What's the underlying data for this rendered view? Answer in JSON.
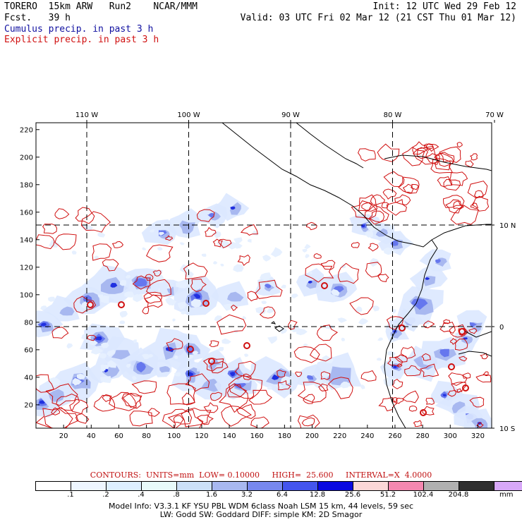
{
  "header": {
    "line1_left": "TORERO  15km ARW   Run2    NCAR/MMM",
    "line1_right": "Init: 12 UTC Wed 29 Feb 12",
    "line2_left": "Fcst.   39 h",
    "line2_right": "Valid: 03 UTC Fri 02 Mar 12 (21 CST Thu 01 Mar 12)",
    "cumulus_label": "Cumulus precip. in past 3 h",
    "explicit_label": "Explicit precip. in past 3 h"
  },
  "colors": {
    "cumulus": "#1010a0",
    "explicit": "#d01010",
    "coast": "#000000"
  },
  "map": {
    "lon_labels": [
      "110 W",
      "100 W",
      "90 W",
      "80 W",
      "70 W"
    ],
    "lon_values": [
      -110,
      -100,
      -90,
      -80,
      -70
    ],
    "lat_labels": [
      "10 N",
      "0",
      "10 S"
    ],
    "lat_values": [
      10,
      0,
      -10
    ],
    "y_ticks": [
      "20",
      "40",
      "60",
      "80",
      "100",
      "120",
      "140",
      "160",
      "180",
      "200",
      "220"
    ],
    "x_ticks": [
      "20",
      "40",
      "60",
      "80",
      "100",
      "120",
      "140",
      "160",
      "180",
      "200",
      "220",
      "240",
      "260",
      "280",
      "300",
      "320"
    ],
    "x_range": [
      0,
      330
    ],
    "y_range": [
      3,
      225
    ]
  },
  "contours": {
    "caption": "CONTOURS:  UNITS=mm  LOW= 0.10000     HIGH=  25.600     INTERVAL=X  4.0000"
  },
  "colorbar": {
    "labels": [
      ".1",
      ".2",
      ".4",
      ".8",
      "1.6",
      "3.2",
      "6.4",
      "12.8",
      "25.6",
      "51.2",
      "102.4",
      "204.8"
    ],
    "unit": "mm",
    "colors": [
      "#ffffff",
      "#eef6ff",
      "#ddefff",
      "#e8fafa",
      "#cce0f8",
      "#a8b8f0",
      "#7788ee",
      "#4455ee",
      "#0a0ae0",
      "#fcd8d8",
      "#f488b0",
      "#b0b0b0",
      "#303030",
      "#d8a8f8"
    ]
  },
  "footer": {
    "line1": "Model Info: V3.3.1    KF      YSU PBL   WDM 6class  Noah LSM  15 km,    44 levels,    59 sec",
    "line2": "LW: Godd SW: Goddard DIFF: simple KM: 2D Smagor"
  }
}
